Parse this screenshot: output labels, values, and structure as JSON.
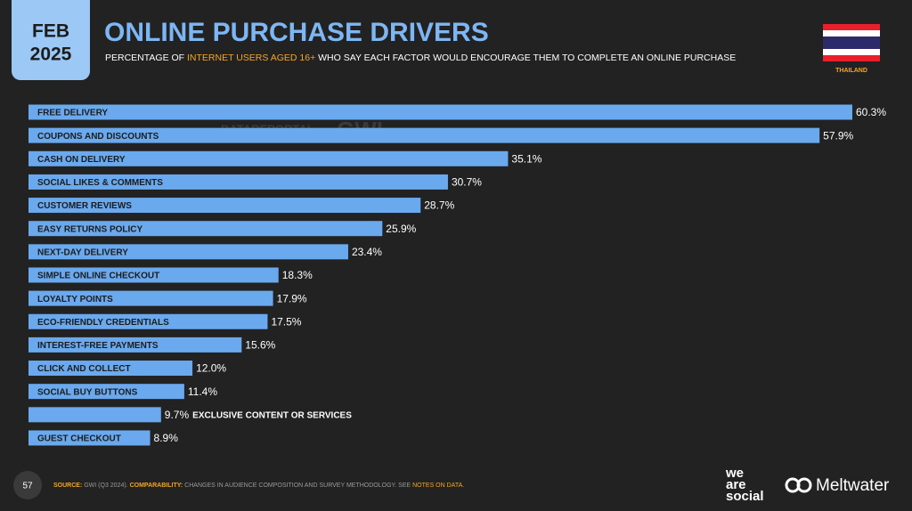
{
  "header": {
    "month": "FEB",
    "year": "2025",
    "title": "ONLINE PURCHASE DRIVERS",
    "subtitle": [
      "PERCENTAGE OF ",
      "INTERNET USERS AGED 16+",
      " WHO SAY EACH FACTOR WOULD ENCOURAGE THEM TO COMPLETE AN ONLINE PURCHASE"
    ],
    "country": "THAILAND"
  },
  "watermark": [
    "DATAREPORTAL",
    "GWI."
  ],
  "chart_data": {
    "type": "bar",
    "orientation": "horizontal",
    "color": "#6aa9ee",
    "categories": [
      "FREE DELIVERY",
      "COUPONS AND DISCOUNTS",
      "CASH ON DELIVERY",
      "SOCIAL LIKES & COMMENTS",
      "CUSTOMER REVIEWS",
      "EASY RETURNS POLICY",
      "NEXT-DAY DELIVERY",
      "SIMPLE ONLINE CHECKOUT",
      "LOYALTY POINTS",
      "ECO-FRIENDLY CREDENTIALS",
      "INTEREST-FREE PAYMENTS",
      "CLICK AND COLLECT",
      "SOCIAL BUY BUTTONS",
      "EXCLUSIVE CONTENT OR SERVICES",
      "GUEST CHECKOUT"
    ],
    "values": [
      60.3,
      57.9,
      35.1,
      30.7,
      28.7,
      25.9,
      23.4,
      18.3,
      17.9,
      17.5,
      15.6,
      12.0,
      11.4,
      9.7,
      8.9
    ],
    "value_labels": [
      "60.3%",
      "57.9%",
      "35.1%",
      "30.7%",
      "28.7%",
      "25.9%",
      "23.4%",
      "18.3%",
      "17.9%",
      "17.5%",
      "15.6%",
      "12.0%",
      "11.4%",
      "9.7%",
      "8.9%"
    ]
  },
  "footer": {
    "page": "57",
    "source_label": "SOURCE:",
    "source": "GWI (Q3 2024).",
    "comparability_label": "COMPARABILITY:",
    "comparability": "CHANGES IN AUDIENCE COMPOSITION AND SURVEY METHODOLOGY. SEE ",
    "link": "NOTES ON DATA",
    "end": ".",
    "logo1": [
      "we",
      "are",
      "social"
    ],
    "logo2": "Meltwater"
  }
}
